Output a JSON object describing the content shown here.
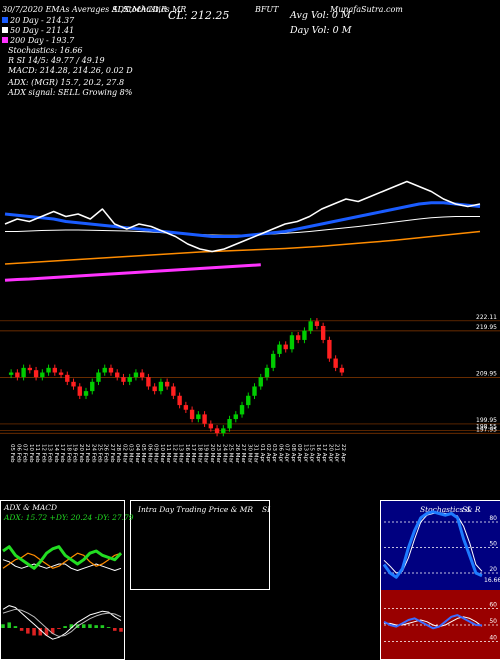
{
  "header": {
    "title_a": "30/7/2020 EMAs Averages ADX,MACD,R",
    "title_b": "SI,Stochastics,MR",
    "close": "CL: 212.25",
    "symbol": "BFUT",
    "avg_vol": "Avg Vol: 0  M",
    "site": "MunafaSutra.com",
    "day_vol": "Day Vol: 0   M",
    "ema20": "20  Day - 214.37",
    "ema50": "50  Day - 211.41",
    "ema200": "200  Day - 193.7",
    "stoch": "Stochastics: 16.66",
    "rsi": "R        SI 14/5: 49.77 / 49.19",
    "macd": "MACD: 214.28, 214.26, 0.02  D",
    "adx": "ADX:                          (MGR) 15.7, 20.2, 27.8",
    "adx_signal": "ADX  signal: SELL Growing 8%"
  },
  "intraday": {
    "title": "Intra  Day Trading Price  & MR",
    "title_b": "SI"
  },
  "chart_data": [
    {
      "type": "line",
      "ylim": [
        178.6,
        258.6
      ],
      "series": [
        {
          "color": "#ff33ff",
          "values": [
            186.5,
            186.8,
            187,
            187.3,
            187.6,
            187.9,
            188.2,
            188.5,
            188.8,
            189.1,
            189.4,
            189.7,
            190,
            190.3,
            190.6,
            190.9,
            191.2,
            191.5,
            191.8,
            192.1,
            192.4,
            192.7,
            null,
            null,
            null,
            null,
            null,
            null,
            null,
            null,
            null,
            null,
            null,
            null,
            null,
            null,
            null,
            null,
            null,
            null
          ]
        },
        {
          "color": "#ff8c00",
          "values": [
            193,
            193.3,
            193.6,
            193.9,
            194.2,
            194.5,
            194.8,
            195.1,
            195.4,
            195.7,
            196,
            196.3,
            196.6,
            196.9,
            197.2,
            197.5,
            197.8,
            198,
            198.2,
            198.4,
            198.6,
            198.8,
            199,
            199.2,
            199.5,
            199.8,
            200.1,
            200.5,
            200.9,
            201.3,
            201.7,
            202.1,
            202.5,
            203,
            203.5,
            204,
            204.5,
            205,
            205.5,
            206
          ]
        },
        {
          "color": "#ffffff",
          "values": [
            206,
            206,
            206.2,
            206.4,
            206.5,
            206.6,
            206.6,
            206.5,
            206.4,
            206.3,
            206.2,
            206,
            205.8,
            205.5,
            205.2,
            205,
            204.8,
            204.6,
            204.5,
            204.5,
            204.6,
            204.8,
            205,
            205.3,
            205.6,
            206,
            206.5,
            207,
            207.5,
            208,
            208.6,
            209.2,
            209.8,
            210.4,
            211,
            211.5,
            211.8,
            212,
            212,
            212
          ]
        },
        {
          "color": "#1a5cff",
          "values": [
            213,
            212.5,
            212,
            211.5,
            211,
            210,
            209.5,
            209,
            208.5,
            208,
            207.5,
            207,
            206.5,
            206,
            205.5,
            205,
            204.5,
            204,
            204,
            204,
            204.5,
            205,
            205.5,
            206,
            207,
            208,
            209,
            210,
            211,
            212,
            213,
            214,
            215,
            216,
            217,
            217.5,
            217.5,
            217,
            216.5,
            216
          ]
        },
        {
          "color": "#ffffff",
          "values": [
            209,
            211,
            210,
            212,
            214,
            212,
            213,
            211,
            215,
            209,
            207,
            209,
            208,
            206,
            204,
            201,
            199,
            198,
            199,
            201,
            203,
            205,
            207,
            209,
            210,
            212,
            215,
            217,
            219,
            218,
            220,
            222,
            224,
            226,
            224,
            222,
            219,
            217,
            216,
            217
          ]
        }
      ]
    },
    {
      "type": "candlestick",
      "ylim": [
        196.5,
        224
      ],
      "grid": true,
      "grid_color": "#8b3a00",
      "up_color": "#00cc00",
      "down_color": "#ff2020",
      "yticks": [
        222.11,
        219.95,
        209.95,
        199.95,
        198.55,
        197.95
      ],
      "categories": [
        "05 Feb",
        "06 Feb",
        "07 Feb",
        "10 Feb",
        "11 Feb",
        "12 Feb",
        "13 Feb",
        "14 Feb",
        "17 Feb",
        "18 Feb",
        "19 Feb",
        "20 Feb",
        "21 Feb",
        "24 Feb",
        "25 Feb",
        "26 Feb",
        "27 Feb",
        "28 Feb",
        "02 Mar",
        "03 Mar",
        "04 Mar",
        "05 Mar",
        "06 Mar",
        "09 Mar",
        "10 Mar",
        "11 Mar",
        "12 Mar",
        "13 Mar",
        "16 Mar",
        "17 Mar",
        "18 Mar",
        "19 Mar",
        "20 Mar",
        "23 Mar",
        "24 Mar",
        "25 Mar",
        "26 Mar",
        "27 Mar",
        "30 Mar",
        "31 Mar",
        "01 Apr",
        "02 Apr",
        "03 Apr",
        "06 Apr",
        "07 Apr",
        "08 Apr",
        "09 Apr",
        "13 Apr",
        "15 Apr",
        "16 Apr",
        "17 Apr",
        "20 Apr",
        "21 Apr",
        "22 Apr"
      ],
      "open": [
        210.5,
        211,
        210,
        212,
        211.5,
        210,
        211,
        212,
        211,
        210.5,
        209,
        208,
        206,
        207,
        209,
        211,
        212,
        211,
        210,
        209,
        210,
        211,
        210,
        208,
        207,
        209,
        208,
        206,
        204,
        203,
        201,
        202,
        200,
        199,
        198,
        199,
        201,
        202,
        204,
        206,
        208,
        210,
        212,
        215,
        217,
        216,
        219,
        218,
        220,
        222,
        221,
        218,
        214,
        212
      ],
      "high": [
        211.7,
        211.7,
        212.7,
        212.7,
        212.2,
        211.7,
        212.7,
        212.7,
        211.7,
        211.2,
        209.7,
        208.7,
        207.7,
        209.7,
        211.7,
        212.7,
        212.7,
        211.7,
        210.7,
        210.7,
        211.7,
        211.7,
        210.7,
        208.7,
        209.7,
        209.7,
        208.7,
        206.7,
        204.7,
        203.7,
        202.7,
        202.7,
        200.7,
        199.7,
        199.7,
        201.7,
        202.7,
        204.7,
        206.7,
        208.7,
        210.7,
        212.7,
        215.7,
        217.7,
        217.7,
        219.7,
        219.7,
        220.7,
        222.7,
        222.7,
        221.7,
        218.7,
        214.7,
        212.7
      ],
      "low": [
        209.8,
        209.3,
        209.3,
        210.8,
        209.3,
        209.3,
        210.3,
        210.3,
        209.8,
        208.3,
        207.3,
        205.3,
        205.3,
        206.3,
        208.3,
        210.3,
        210.3,
        209.3,
        208.3,
        208.3,
        209.3,
        209.3,
        207.3,
        206.3,
        206.3,
        207.3,
        205.3,
        203.3,
        202.3,
        200.3,
        200.3,
        199.3,
        198.3,
        197.3,
        197.3,
        198.3,
        200.3,
        201.3,
        203.3,
        205.3,
        207.3,
        209.3,
        211.3,
        214.3,
        215.3,
        215.3,
        217.3,
        217.3,
        219.3,
        220.3,
        217.3,
        213.3,
        211.3,
        210.3
      ],
      "close": [
        211,
        210,
        212,
        211.5,
        210,
        211,
        212,
        211,
        210.5,
        209,
        208,
        206,
        207,
        209,
        211,
        212,
        211,
        210,
        209,
        210,
        211,
        210,
        208,
        207,
        209,
        208,
        206,
        204,
        203,
        201,
        202,
        200,
        199,
        198,
        199,
        201,
        202,
        204,
        206,
        208,
        210,
        212,
        215,
        217,
        216,
        219,
        218,
        220,
        222,
        221,
        218,
        214,
        212,
        211
      ]
    },
    {
      "type": "line",
      "title": "ADX  & MACD",
      "subtitle": "ADX: 15.72  +DY: 20.24  -DY: 27.79",
      "ylim": [
        10,
        40
      ],
      "series": [
        {
          "color": "#ffffff",
          "values": [
            24,
            23,
            21,
            20,
            21,
            22,
            21,
            20,
            21,
            22,
            22,
            20,
            19,
            20,
            21,
            22,
            21,
            20,
            19,
            20
          ]
        },
        {
          "color": "#ff8c00",
          "values": [
            20,
            22,
            24,
            25,
            27,
            26,
            24,
            22,
            20,
            21,
            23,
            25,
            27,
            26,
            23,
            21,
            22,
            24,
            26,
            27
          ]
        },
        {
          "color": "#22dd22",
          "values": [
            28,
            30,
            26,
            24,
            22,
            20,
            23,
            27,
            29,
            30,
            26,
            24,
            22,
            24,
            27,
            28,
            26,
            25,
            24,
            27
          ]
        }
      ]
    },
    {
      "type": "line",
      "ylim": [
        -3,
        3
      ],
      "up_color": "#22cc22",
      "down_color": "#dd2222",
      "histogram": [
        0.4,
        0.6,
        0.2,
        -0.3,
        -0.6,
        -0.8,
        -0.8,
        -0.8,
        -0.6,
        -0.1,
        0.2,
        0.4,
        0.4,
        0.4,
        0.4,
        0.3,
        0.3,
        0.1,
        -0.3,
        -0.4
      ],
      "series": [
        {
          "color": "#ffffff",
          "values": [
            2,
            2.4,
            2.2,
            1.6,
            1,
            0.4,
            -0.2,
            -0.8,
            -1.2,
            -1,
            -0.6,
            0,
            0.6,
            1,
            1.4,
            1.6,
            1.8,
            1.7,
            1.2,
            0.8
          ]
        },
        {
          "color": "#bbbbbb",
          "values": [
            1.6,
            1.8,
            2,
            1.9,
            1.6,
            1.2,
            0.6,
            0,
            -0.6,
            -0.9,
            -0.8,
            -0.4,
            0.2,
            0.6,
            1,
            1.3,
            1.5,
            1.6,
            1.5,
            1.2
          ]
        }
      ]
    },
    {
      "type": "line",
      "title": "Stochastics & R",
      "title_b": "SI",
      "ylim": [
        0,
        100
      ],
      "yticks": [
        80,
        50,
        20
      ],
      "grid": true,
      "grid_color": "#ffffff",
      "background": "#000080",
      "series": [
        {
          "color": "#ffffff",
          "values": [
            35,
            28,
            20,
            22,
            38,
            60,
            80,
            88,
            90,
            91,
            90,
            89,
            87,
            75,
            55,
            30,
            22
          ]
        },
        {
          "color": "#1e7bff",
          "values": [
            30,
            20,
            15,
            25,
            50,
            70,
            85,
            90,
            92,
            90,
            88,
            90,
            85,
            60,
            40,
            20,
            16.66
          ],
          "label_last": true
        }
      ]
    },
    {
      "type": "line",
      "ylim": [
        30,
        70
      ],
      "yticks": [
        60,
        50,
        40
      ],
      "grid": true,
      "grid_color": "#ffffff",
      "background": "#990000",
      "series": [
        {
          "color": "#ffffff",
          "values": [
            51,
            51,
            50,
            50,
            51,
            52,
            53,
            52,
            50,
            49,
            50,
            52,
            54,
            55,
            54,
            52,
            49.19
          ]
        },
        {
          "color": "#3b6bff",
          "values": [
            52,
            50,
            49,
            51,
            53,
            54,
            52,
            50,
            48,
            49,
            52,
            55,
            56,
            54,
            52,
            50,
            49.77
          ]
        }
      ]
    }
  ]
}
